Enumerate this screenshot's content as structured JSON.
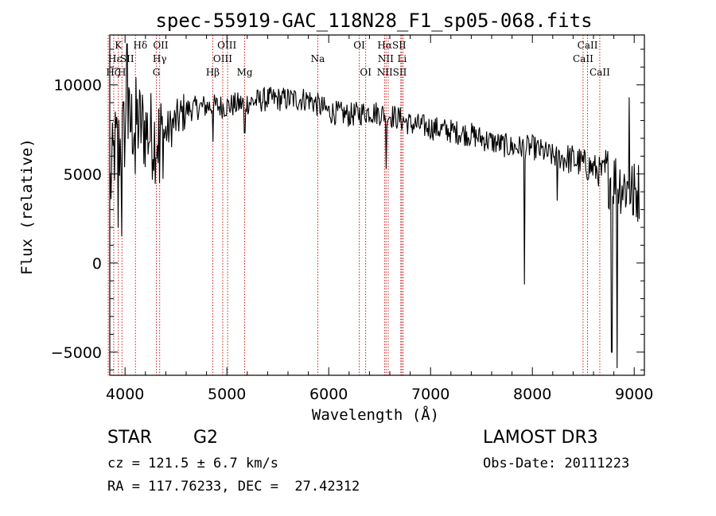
{
  "chart_data": {
    "type": "line",
    "title": "spec-55919-GAC_118N28_F1_sp05-068.fits",
    "xlabel": "Wavelength (Å)",
    "ylabel": "Flux (relative)",
    "xlim": [
      3850,
      9100
    ],
    "ylim": [
      -6300,
      12800
    ],
    "x_ticks": [
      4000,
      5000,
      6000,
      7000,
      8000,
      9000
    ],
    "y_ticks": [
      -5000,
      0,
      5000,
      10000
    ],
    "y_tick_labels": [
      "−5000",
      "0",
      "5000",
      "10000"
    ],
    "spectrum_nodes": {
      "x": [
        3850,
        3900,
        3950,
        4000,
        4100,
        4200,
        4300,
        4400,
        4600,
        4800,
        5000,
        5200,
        5400,
        5600,
        5800,
        6000,
        6200,
        6400,
        6600,
        6700,
        6800,
        7000,
        7200,
        7400,
        7600,
        7800,
        8000,
        8200,
        8400,
        8600,
        8800,
        9000,
        9050
      ],
      "y": [
        4000,
        6500,
        6500,
        7500,
        8000,
        7500,
        7000,
        7300,
        8600,
        8800,
        8800,
        9000,
        9200,
        9200,
        9200,
        8500,
        8300,
        8500,
        8300,
        8100,
        7800,
        7600,
        7400,
        7200,
        6800,
        6500,
        6500,
        6000,
        5800,
        5300,
        4700,
        4000,
        4000
      ]
    },
    "spectrum_dips": [
      {
        "x": 3933,
        "y": 2000
      },
      {
        "x": 3968,
        "y": 1500
      },
      {
        "x": 4101,
        "y": 5000
      },
      {
        "x": 4340,
        "y": 4500
      },
      {
        "x": 4861,
        "y": 6800
      },
      {
        "x": 5175,
        "y": 7300
      },
      {
        "x": 6563,
        "y": 5300
      },
      {
        "x": 7920,
        "y": -1200
      },
      {
        "x": 8245,
        "y": 3500
      },
      {
        "x": 8780,
        "y": -5000
      },
      {
        "x": 8830,
        "y": -5900
      },
      {
        "x": 8990,
        "y": 2700
      }
    ],
    "spectrum_spikes": [
      {
        "x": 4020,
        "y": 12300
      },
      {
        "x": 8950,
        "y": 9300
      }
    ],
    "lines": [
      {
        "label": "K",
        "x": 3934,
        "row": 0
      },
      {
        "label": "H",
        "x": 3969,
        "row": 2
      },
      {
        "label": "Hδ",
        "x": 4102,
        "row": 0
      },
      {
        "label": "Hγ",
        "x": 4340,
        "row": 1
      },
      {
        "label": "Hβ",
        "x": 4861,
        "row": 2
      },
      {
        "label": "OIII",
        "x": 5007,
        "row": 0
      },
      {
        "label": "Mg",
        "x": 5175,
        "row": 2
      },
      {
        "label": "Na",
        "x": 5893,
        "row": 1
      },
      {
        "label": "OI",
        "x": 6300,
        "row": 0
      },
      {
        "label": "Hα",
        "x": 6563,
        "row": 0
      },
      {
        "label": "CaII",
        "x": 8542,
        "row": 0
      }
    ],
    "line_labels": [
      {
        "text": "K",
        "x": 3934,
        "row": 0
      },
      {
        "text": "Hε",
        "x": 3900,
        "row": 1
      },
      {
        "text": "SII",
        "x": 4020,
        "row": 1
      },
      {
        "text": "Hζ",
        "x": 3880,
        "row": 2
      },
      {
        "text": "H",
        "x": 3969,
        "row": 2
      },
      {
        "text": "Hδ",
        "x": 4150,
        "row": 0
      },
      {
        "text": "OII",
        "x": 4350,
        "row": 0
      },
      {
        "text": "Hγ",
        "x": 4340,
        "row": 1
      },
      {
        "text": "G",
        "x": 4307,
        "row": 2
      },
      {
        "text": "OIII",
        "x": 5000,
        "row": 0
      },
      {
        "text": "OIII",
        "x": 4959,
        "row": 1
      },
      {
        "text": "Hβ",
        "x": 4861,
        "row": 2
      },
      {
        "text": "Mg",
        "x": 5175,
        "row": 2
      },
      {
        "text": "Na",
        "x": 5893,
        "row": 1
      },
      {
        "text": "OI",
        "x": 6300,
        "row": 0
      },
      {
        "text": "OI",
        "x": 6363,
        "row": 2
      },
      {
        "text": "HαSII",
        "x": 6620,
        "row": 0
      },
      {
        "text": "NII",
        "x": 6560,
        "row": 1
      },
      {
        "text": "Li",
        "x": 6720,
        "row": 1
      },
      {
        "text": "NIISII",
        "x": 6620,
        "row": 2
      },
      {
        "text": "CaII",
        "x": 8542,
        "row": 0
      },
      {
        "text": "CaII",
        "x": 8498,
        "row": 1
      },
      {
        "text": "CaII",
        "x": 8662,
        "row": 2
      }
    ],
    "line_marker_x": [
      3835,
      3889,
      3934,
      3969,
      4102,
      4307,
      4340,
      4861,
      4959,
      5007,
      5175,
      5893,
      6300,
      6363,
      6548,
      6563,
      6584,
      6708,
      6717,
      6731,
      8498,
      8542,
      8662
    ],
    "colors": {
      "spectrum": "#000000",
      "lines": "#cc0000",
      "axes": "#000000"
    }
  },
  "info": {
    "class": "STAR",
    "subclass": "G2",
    "cz": "cz = 121.5 ± 6.7 km/s",
    "coords": "RA = 117.76233, DEC =  27.42312",
    "survey": "LAMOST DR3",
    "obs_date": "Obs-Date: 20111223"
  }
}
